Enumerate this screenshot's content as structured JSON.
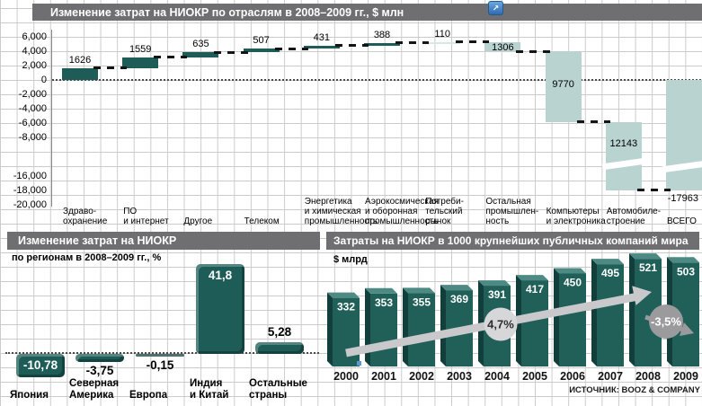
{
  "icons": {
    "export": "↗"
  },
  "colors": {
    "header_bar": "#6f6f71",
    "dark_teal": "#1d5c57",
    "light_teal": "#b9d3d0",
    "pale_teal": "#d9e8e6",
    "arrow_gray": "#c9c9cb",
    "badge_gray": "#9b9b9e",
    "badge_light": "#d7d7d9"
  },
  "chart_data": [
    {
      "type": "bar",
      "subtype": "waterfall",
      "title": "Изменение затрат на НИОКР по отраслям в 2008–2009 гг., $ млн",
      "categories": [
        "Здраво-\nохранение",
        "ПО\nи интернет",
        "Другое",
        "Телеком",
        "Энергетика\nи химическая\nпромышленность",
        "Аэрокосмическая\nи оборонная\nпромышленность",
        "Потреби-\nтельский\nрынок",
        "Остальная\nпромышлен-\nность",
        "Компьютеры\nи электроника",
        "Автомобиле-\nстроение",
        "ВСЕГО"
      ],
      "values": [
        1626,
        1559,
        635,
        507,
        431,
        388,
        110,
        -1306,
        -9770,
        -12143,
        -17963
      ],
      "value_labels": [
        "1626",
        "1559",
        "635",
        "507",
        "431",
        "388",
        "110",
        "1306",
        "9770",
        "12143",
        "-17963"
      ],
      "ylim": [
        -20000,
        6000
      ],
      "axis_break": [
        -8000,
        -16000
      ],
      "y_ticks": [
        {
          "label": "6,000",
          "value": 6000
        },
        {
          "label": "4,000",
          "value": 4000
        },
        {
          "label": "2,000",
          "value": 2000
        },
        {
          "label": "0",
          "value": 0
        },
        {
          "label": "-2,000",
          "value": -2000
        },
        {
          "label": "-4,000",
          "value": -4000
        },
        {
          "label": "-6,000",
          "value": -6000
        },
        {
          "label": "-8,000",
          "value": -8000
        },
        {
          "label": "-16,000",
          "value": -16000
        },
        {
          "label": "-18,000",
          "value": -18000
        },
        {
          "label": "-20,000",
          "value": -20000
        }
      ],
      "colors": {
        "increase": "#1d5c57",
        "small_increase": "#d9e8e6",
        "decrease": "#b9d3d0",
        "total": "#b9d3d0"
      }
    },
    {
      "type": "bar",
      "title": "Изменение затрат на НИОКР",
      "subtitle": "по регионам в 2008–2009 гг., %",
      "categories": [
        "Япония",
        "Северная\nАмерика",
        "Европа",
        "Индия\nи Китай",
        "Остальные\nстраны"
      ],
      "values": [
        -10.78,
        -3.75,
        -0.15,
        41.8,
        5.28
      ],
      "value_labels": [
        "-10,78",
        "-3,75",
        "-0,15",
        "41,8",
        "5,28"
      ],
      "bar_color": "#1d5c57"
    },
    {
      "type": "bar",
      "title": "Затраты на НИОКР в 1000 крупнейших публичных компаний мира",
      "ylabel": "$ млрд",
      "categories": [
        "2000",
        "2001",
        "2002",
        "2003",
        "2004",
        "2005",
        "2006",
        "2007",
        "2008",
        "2009"
      ],
      "values": [
        332,
        353,
        355,
        369,
        391,
        417,
        450,
        495,
        521,
        503
      ],
      "annotations": [
        {
          "label": "4,7%"
        },
        {
          "label": "-3,5%"
        }
      ],
      "source": "ИСТОЧНИК: BOOZ & COMPANY",
      "bar_color": "#206059",
      "arrow_color": "#c9c9cb"
    }
  ]
}
